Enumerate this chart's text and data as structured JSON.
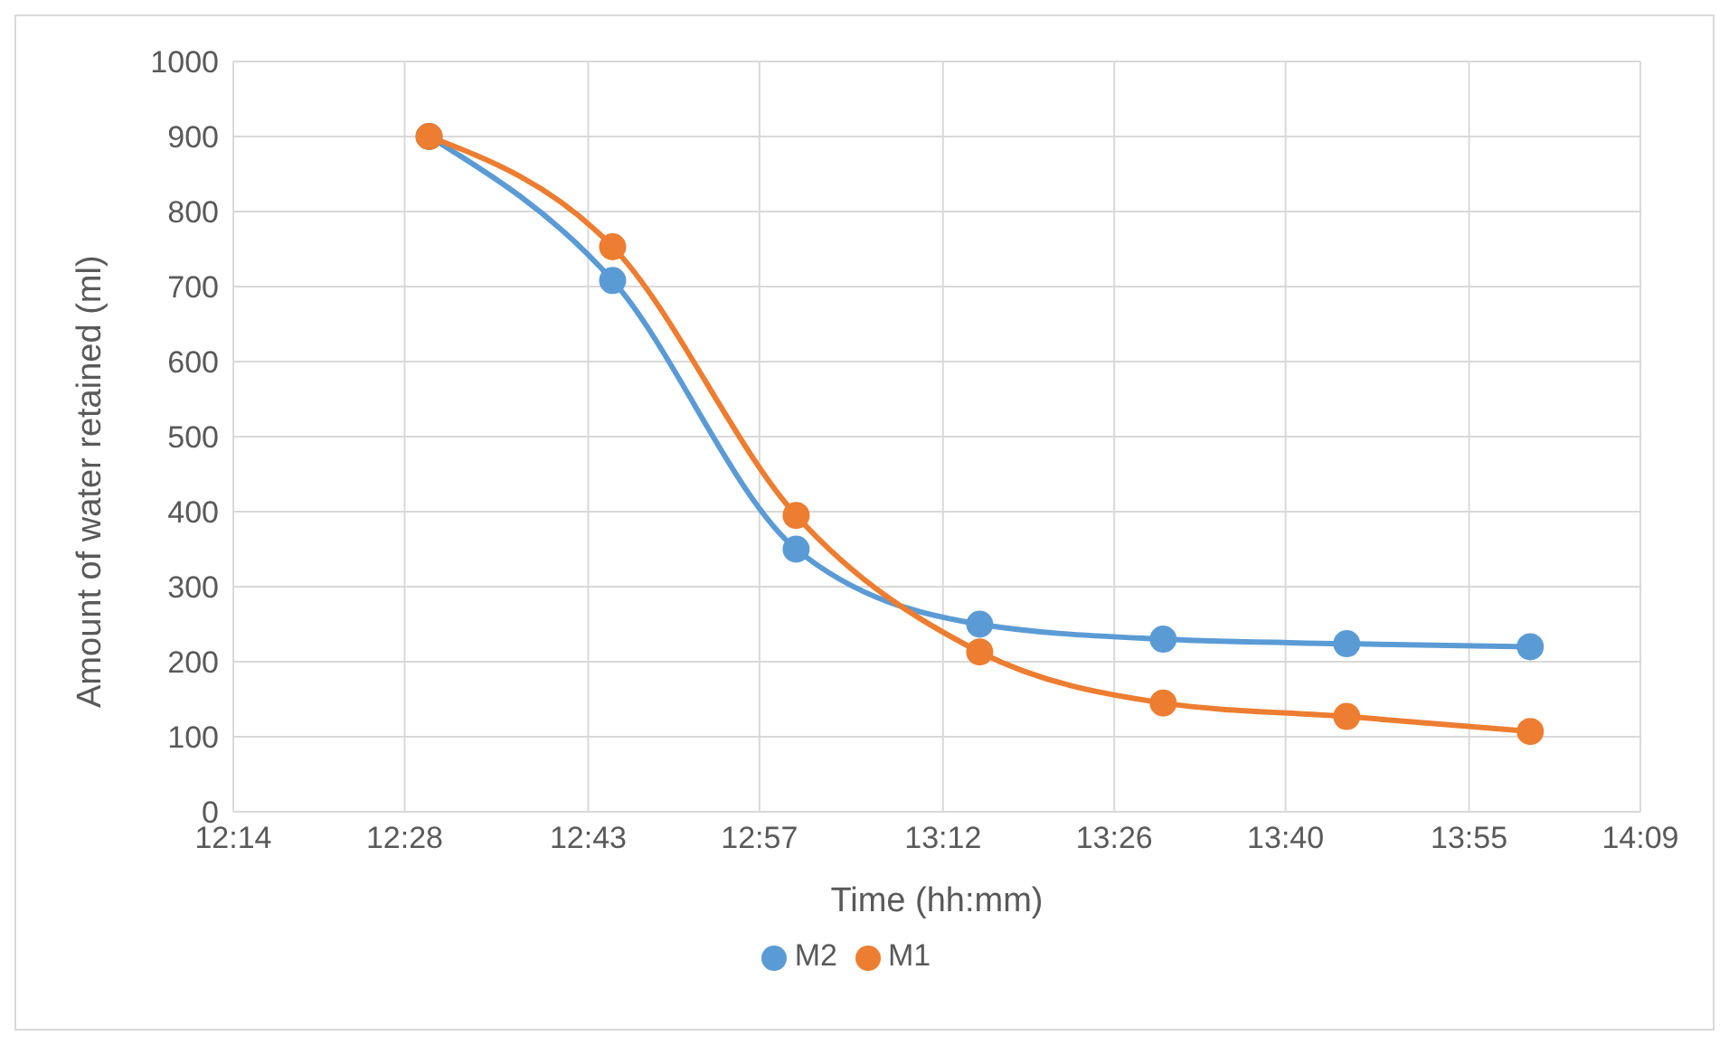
{
  "chart_data": {
    "type": "line",
    "xlabel": "Time (hh:mm)",
    "ylabel": "Amount of water retained (ml)",
    "x": [
      12.5,
      12.75,
      13.0,
      13.25,
      13.5,
      13.75,
      14.0
    ],
    "series": [
      {
        "name": "M2",
        "color": "#5b9bd5",
        "values": [
          900,
          708,
          350,
          250,
          230,
          224,
          220
        ]
      },
      {
        "name": "M1",
        "color": "#ed7d31",
        "values": [
          900,
          753,
          395,
          213,
          145,
          127,
          107
        ]
      }
    ],
    "xlim": [
      12.2333,
      14.15
    ],
    "xticks": [
      {
        "value": 12.2333,
        "label": "12:14"
      },
      {
        "value": 12.4667,
        "label": "12:28"
      },
      {
        "value": 12.7167,
        "label": "12:43"
      },
      {
        "value": 12.95,
        "label": "12:57"
      },
      {
        "value": 13.2,
        "label": "13:12"
      },
      {
        "value": 13.4333,
        "label": "13:26"
      },
      {
        "value": 13.6667,
        "label": "13:40"
      },
      {
        "value": 13.9167,
        "label": "13:55"
      },
      {
        "value": 14.15,
        "label": "14:09"
      }
    ],
    "ylim": [
      0,
      1000
    ],
    "yticks": [
      0,
      100,
      200,
      300,
      400,
      500,
      600,
      700,
      800,
      900,
      1000
    ],
    "grid": true,
    "legend": "bottom",
    "marker": "circle",
    "line_style": "solid"
  }
}
